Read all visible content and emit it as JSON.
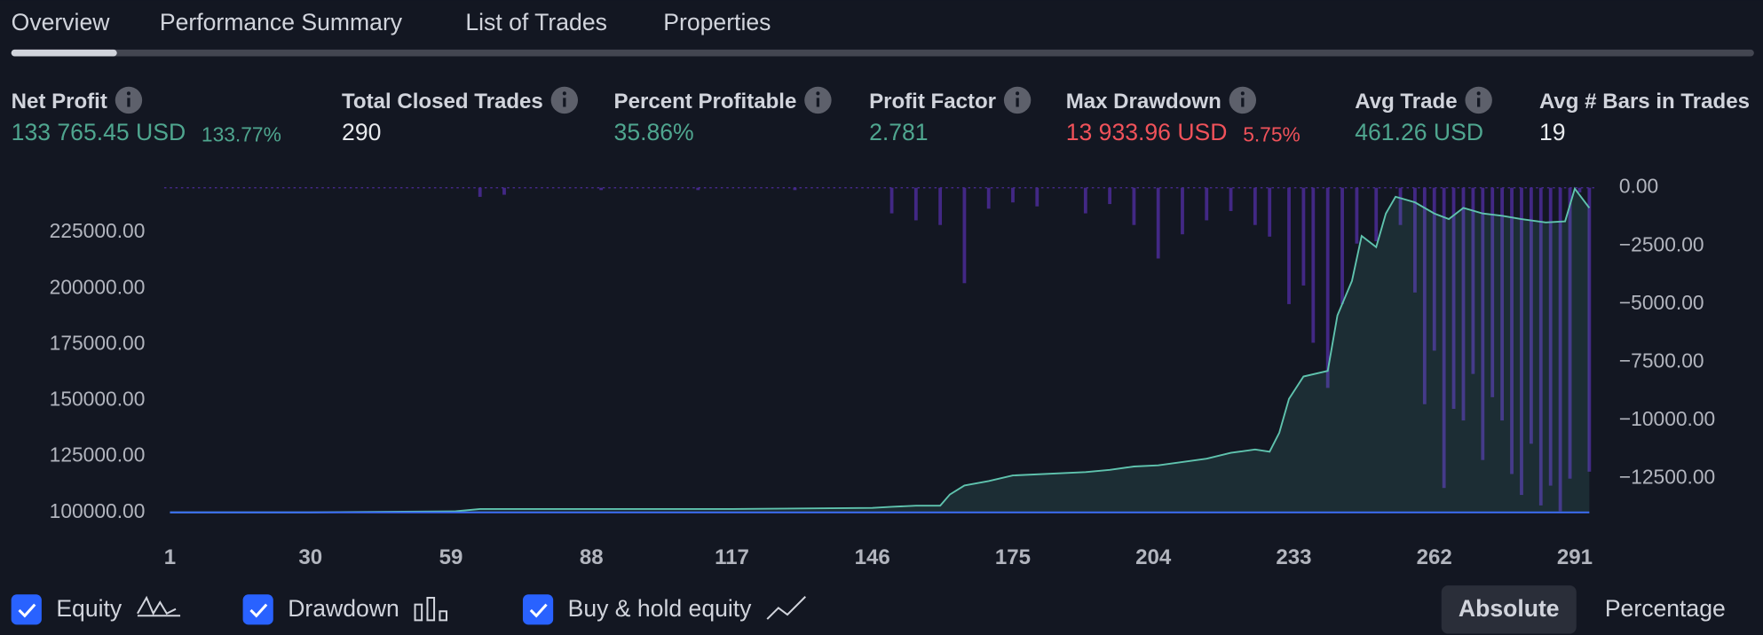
{
  "tabs": {
    "items": [
      "Overview",
      "Performance Summary",
      "List of Trades",
      "Properties"
    ],
    "active": 0
  },
  "metrics": [
    {
      "label": "Net Profit",
      "value": "133 765.45 USD",
      "percent": "133.77%",
      "color": "#4fa68f"
    },
    {
      "label": "Total Closed Trades",
      "value": "290",
      "color": "#e8eaed"
    },
    {
      "label": "Percent Profitable",
      "value": "35.86%",
      "color": "#4fa68f"
    },
    {
      "label": "Profit Factor",
      "value": "2.781",
      "color": "#4fa68f"
    },
    {
      "label": "Max Drawdown",
      "value": "13 933.96 USD",
      "percent": "5.75%",
      "color": "#f0525a"
    },
    {
      "label": "Avg Trade",
      "value": "461.26 USD",
      "color": "#4fa68f"
    },
    {
      "label": "Avg # Bars in Trades",
      "value": "19",
      "color": "#e8eaed"
    }
  ],
  "chart_data": {
    "type": "line",
    "xlim": [
      -0.2,
      295.5
    ],
    "ylim": [
      100000,
      245000
    ],
    "y2lim": [
      -13950,
      0
    ],
    "xticks": [
      1,
      30,
      59,
      88,
      117,
      146,
      175,
      204,
      233,
      262,
      291
    ],
    "yticks": [
      {
        "value": 100000,
        "label": "100000.00"
      },
      {
        "value": 125000,
        "label": "125000.00"
      },
      {
        "value": 150000,
        "label": "150000.00"
      },
      {
        "value": 175000,
        "label": "175000.00"
      },
      {
        "value": 200000,
        "label": "200000.00"
      },
      {
        "value": 225000,
        "label": "225000.00"
      }
    ],
    "y2ticks": [
      {
        "value": 0,
        "label": "0.00"
      },
      {
        "value": -2500,
        "label": "−2500.00"
      },
      {
        "value": -5000,
        "label": "−5000.00"
      },
      {
        "value": -7500,
        "label": "−7500.00"
      },
      {
        "value": -10000,
        "label": "−10000.00"
      },
      {
        "value": -12500,
        "label": "−12500.00"
      }
    ],
    "series": [
      {
        "name": "Equity",
        "type": "area",
        "color": "#5fc3ae",
        "x": [
          1,
          30,
          60,
          65,
          88,
          117,
          146,
          150,
          155,
          160,
          162,
          165,
          170,
          175,
          190,
          195,
          200,
          205,
          215,
          220,
          225,
          228,
          230,
          232,
          235,
          240,
          242,
          245,
          247,
          250,
          252,
          254,
          258,
          262,
          265,
          268,
          272,
          276,
          280,
          285,
          289,
          291,
          294
        ],
        "values": [
          100000,
          100000,
          100500,
          101500,
          101500,
          101500,
          102000,
          102500,
          103000,
          103000,
          108000,
          112000,
          114000,
          116500,
          118000,
          119000,
          120500,
          121000,
          124000,
          126600,
          128100,
          127100,
          135600,
          150700,
          160700,
          163200,
          188000,
          203400,
          223500,
          218500,
          233500,
          241000,
          238500,
          233500,
          231000,
          236000,
          233500,
          232500,
          231000,
          229500,
          230000,
          244600,
          236000
        ]
      },
      {
        "name": "Drawdown",
        "type": "bar",
        "axis": "y2",
        "color": "#4b2b96",
        "x": [
          65,
          70,
          90,
          110,
          130,
          150,
          155,
          160,
          165,
          170,
          175,
          180,
          190,
          195,
          200,
          205,
          210,
          215,
          220,
          225,
          228,
          232,
          235,
          237,
          240,
          243,
          246,
          250,
          255,
          258,
          260,
          262,
          264,
          266,
          268,
          270,
          272,
          274,
          276,
          278,
          280,
          282,
          284,
          286,
          288,
          290,
          292,
          294
        ],
        "values": [
          -390,
          -300,
          -100,
          -100,
          -100,
          -1100,
          -1400,
          -1600,
          -4100,
          -900,
          -630,
          -800,
          -1100,
          -700,
          -1600,
          -3040,
          -2000,
          -1400,
          -1000,
          -1600,
          -2100,
          -5000,
          -4200,
          -6660,
          -8600,
          -5000,
          -2400,
          -2300,
          -1600,
          -4500,
          -9300,
          -7000,
          -12900,
          -9500,
          -10000,
          -8000,
          -11700,
          -9000,
          -10000,
          -12300,
          -13200,
          -11000,
          -13650,
          -12800,
          -13900,
          -12500,
          -200,
          -12200
        ]
      },
      {
        "name": "Buy & hold equity",
        "type": "line",
        "color": "#3d6ef5",
        "x": [
          1,
          294
        ],
        "values": [
          100000,
          100000
        ]
      }
    ]
  },
  "toggle": {
    "items": [
      "Absolute",
      "Percentage"
    ],
    "active": 0
  }
}
